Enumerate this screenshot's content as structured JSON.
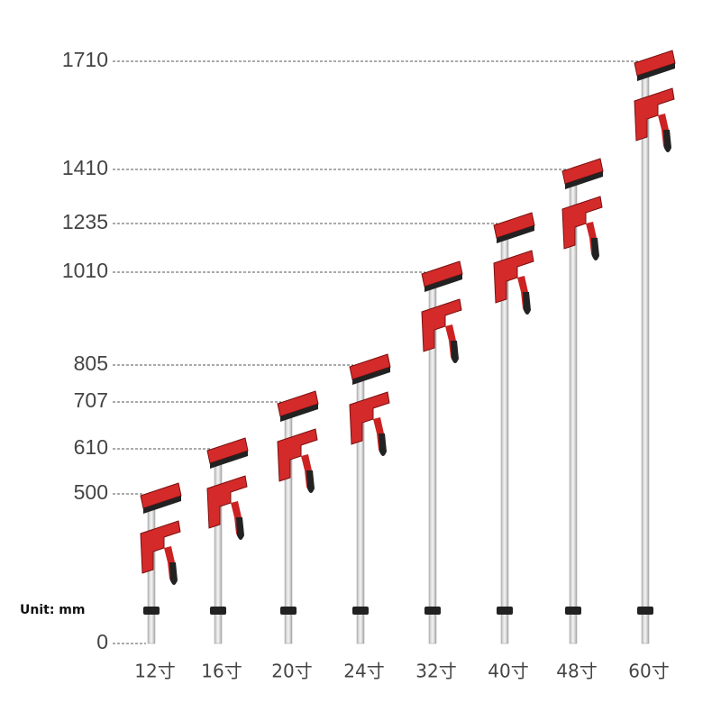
{
  "unit": "Unit: mm",
  "zero": "0",
  "clamps": [
    {
      "size": "12寸",
      "height": "500"
    },
    {
      "size": "16寸",
      "height": "610"
    },
    {
      "size": "20寸",
      "height": "707"
    },
    {
      "size": "24寸",
      "height": "805"
    },
    {
      "size": "32寸",
      "height": "1010"
    },
    {
      "size": "40寸",
      "height": "1235"
    },
    {
      "size": "48寸",
      "height": "1410"
    },
    {
      "size": "60寸",
      "height": "1710"
    }
  ]
}
